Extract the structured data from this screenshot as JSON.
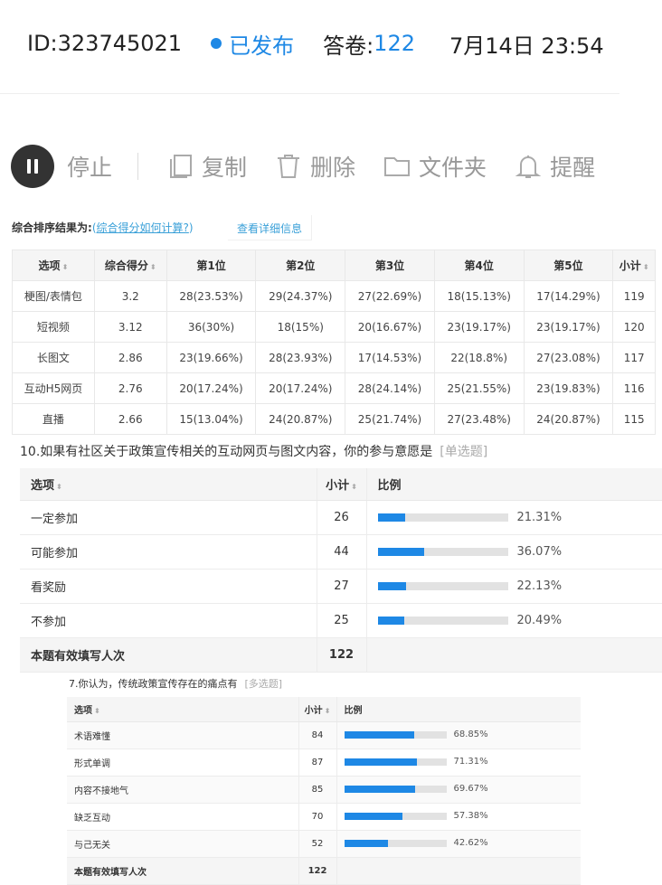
{
  "header": {
    "id": "ID:323745021",
    "status": "已发布",
    "answers_label": "答卷:",
    "answers": "122",
    "datetime": "7月14日 23:54"
  },
  "toolbar": {
    "stop": "停止",
    "copy": "复制",
    "delete": "删除",
    "folder": "文件夹",
    "remind": "提醒"
  },
  "ranking": {
    "label": "综合排序结果为:",
    "paren_open": "(",
    "link": "综合得分如何计算?",
    "paren_close": ")",
    "detail": "查看详细信息",
    "columns": [
      "选项",
      "综合得分",
      "第1位",
      "第2位",
      "第3位",
      "第4位",
      "第5位",
      "小计"
    ],
    "rows": [
      [
        "梗图/表情包",
        "3.2",
        "28(23.53%)",
        "29(24.37%)",
        "27(22.69%)",
        "18(15.13%)",
        "17(14.29%)",
        "119"
      ],
      [
        "短视频",
        "3.12",
        "36(30%)",
        "18(15%)",
        "20(16.67%)",
        "23(19.17%)",
        "23(19.17%)",
        "120"
      ],
      [
        "长图文",
        "2.86",
        "23(19.66%)",
        "28(23.93%)",
        "17(14.53%)",
        "22(18.8%)",
        "27(23.08%)",
        "117"
      ],
      [
        "互动H5网页",
        "2.76",
        "20(17.24%)",
        "20(17.24%)",
        "28(24.14%)",
        "25(21.55%)",
        "23(19.83%)",
        "116"
      ],
      [
        "直播",
        "2.66",
        "15(13.04%)",
        "24(20.87%)",
        "25(21.74%)",
        "27(23.48%)",
        "24(20.87%)",
        "115"
      ]
    ]
  },
  "q10": {
    "title": "10.如果有社区关于政策宣传相关的互动网页与图文内容，你的参与意愿是",
    "tag": "[单选题]",
    "columns": [
      "选项",
      "小计",
      "比例"
    ],
    "rows": [
      {
        "option": "一定参加",
        "count": "26",
        "pct": "21.31%",
        "value": 21.31
      },
      {
        "option": "可能参加",
        "count": "44",
        "pct": "36.07%",
        "value": 36.07
      },
      {
        "option": "看奖励",
        "count": "27",
        "pct": "22.13%",
        "value": 22.13
      },
      {
        "option": "不参加",
        "count": "25",
        "pct": "20.49%",
        "value": 20.49
      }
    ],
    "total_label": "本题有效填写人次",
    "total": "122"
  },
  "q7": {
    "title": "7.你认为，传统政策宣传存在的痛点有",
    "tag": "[多选题]",
    "columns": [
      "选项",
      "小计",
      "比例"
    ],
    "rows": [
      {
        "option": "术语难懂",
        "count": "84",
        "pct": "68.85%",
        "value": 68.85
      },
      {
        "option": "形式单调",
        "count": "87",
        "pct": "71.31%",
        "value": 71.31
      },
      {
        "option": "内容不接地气",
        "count": "85",
        "pct": "69.67%",
        "value": 69.67
      },
      {
        "option": "缺乏互动",
        "count": "70",
        "pct": "57.38%",
        "value": 57.38
      },
      {
        "option": "与己无关",
        "count": "52",
        "pct": "42.62%",
        "value": 42.62
      }
    ],
    "total_label": "本题有效填写人次",
    "total": "122"
  },
  "colors": {
    "accent": "#1e88e5",
    "bar_track": "#e2e2e2"
  }
}
